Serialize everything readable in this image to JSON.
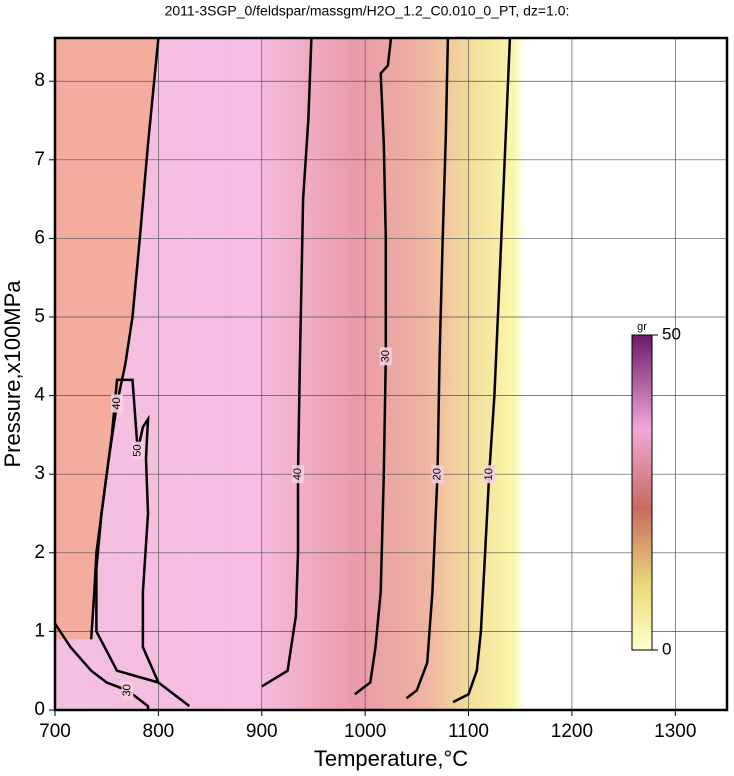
{
  "chart_data": {
    "type": "contour",
    "title": "2011-3SGP_0/feldspar/massgm/H2O_1.2_C0.010_0_PT, dz=1.0:",
    "x_label": "Temperature,°C",
    "y_label": "Pressure,x100MPa",
    "xlim": [
      700,
      1350
    ],
    "ylim": [
      0,
      8.55
    ],
    "xticks": [
      700,
      800,
      900,
      1000,
      1100,
      1200,
      1300
    ],
    "yticks": [
      0,
      1,
      2,
      3,
      4,
      5,
      6,
      7,
      8
    ],
    "grid": true,
    "series": [
      {
        "name": "10",
        "color": "#000000",
        "x": [
          1085,
          1100,
          1108,
          1112,
          1116,
          1120,
          1125,
          1130,
          1135,
          1140
        ],
        "values": [
          0.1,
          0.2,
          0.5,
          1,
          2,
          3,
          4,
          5.5,
          7,
          8.55
        ]
      },
      {
        "name": "20",
        "color": "#000000",
        "x": [
          1040,
          1050,
          1060,
          1065,
          1070,
          1072,
          1075,
          1078,
          1080
        ],
        "values": [
          0.15,
          0.25,
          0.6,
          1.5,
          3,
          4.5,
          6,
          7.3,
          8.55
        ]
      },
      {
        "name": "30",
        "color": "#000000",
        "x": [
          990,
          1005,
          1010,
          1015,
          1018,
          1020,
          1020,
          1018,
          1015,
          1022,
          1025
        ],
        "values": [
          0.2,
          0.35,
          0.8,
          1.5,
          3,
          4.5,
          6,
          7.2,
          8.1,
          8.2,
          8.55
        ]
      },
      {
        "name": "40",
        "color": "#000000",
        "x": [
          900,
          925,
          933,
          935,
          935,
          937,
          940,
          945,
          948
        ],
        "values": [
          0.3,
          0.5,
          1.2,
          2,
          3,
          4.5,
          6.5,
          7.5,
          8.55
        ]
      },
      {
        "name": "50",
        "color": "#000000",
        "x": [
          830,
          800,
          785,
          785,
          790,
          788,
          790,
          785,
          780,
          775,
          760,
          755,
          745,
          740,
          740,
          760,
          800
        ],
        "values": [
          0.05,
          0.35,
          0.8,
          1.5,
          2.5,
          3.2,
          3.7,
          3.6,
          3.3,
          4.2,
          4.2,
          3.5,
          2.5,
          1.8,
          1.0,
          0.5,
          0.35
        ]
      },
      {
        "name": "30",
        "color": "#000000",
        "x": [
          700,
          715,
          735,
          750,
          770,
          780,
          790,
          790
        ],
        "values": [
          1.1,
          0.8,
          0.5,
          0.35,
          0.25,
          0.15,
          0.05,
          0.0
        ]
      },
      {
        "name": "40",
        "color": "#000000",
        "x": [
          735,
          738,
          740,
          745,
          752,
          760,
          768,
          775,
          782,
          790,
          800
        ],
        "values": [
          0.9,
          1.5,
          2.0,
          2.5,
          3.2,
          3.9,
          4.4,
          5.0,
          6.0,
          7.2,
          8.55
        ]
      }
    ],
    "colorbar": {
      "label": "gr",
      "lim": [
        0,
        50
      ],
      "ticks": [
        0,
        50
      ]
    }
  }
}
